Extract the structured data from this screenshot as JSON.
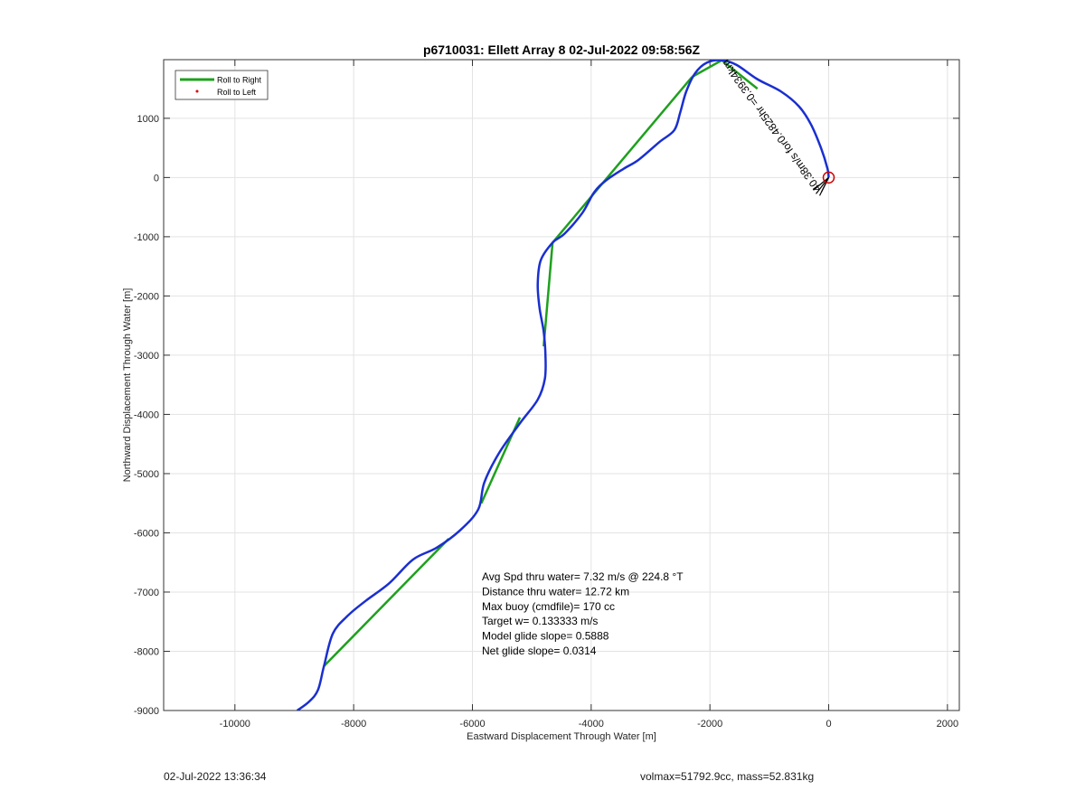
{
  "chart_data": {
    "type": "line",
    "title": "p6710031: Ellett Array 8 02-Jul-2022 09:58:56Z",
    "xlabel": "Eastward Displacement Through Water [m]",
    "ylabel": "Northward Displacement Through Water [m]",
    "xlim": [
      -11200,
      2200
    ],
    "ylim": [
      -9000,
      1990
    ],
    "xticks": [
      -10000,
      -8000,
      -6000,
      -4000,
      -2000,
      0,
      2000
    ],
    "yticks": [
      -9000,
      -8000,
      -7000,
      -6000,
      -5000,
      -4000,
      -3000,
      -2000,
      -1000,
      0,
      1000
    ],
    "grid": true,
    "legend": {
      "position": "top-left",
      "entries": [
        {
          "label": "Roll to Right",
          "color": "#1ea01e",
          "style": "line"
        },
        {
          "label": "Roll to Left",
          "color": "#e00000",
          "style": "dot"
        }
      ]
    },
    "series": [
      {
        "name": "Roll to Right",
        "color": "#1ea01e",
        "segments": [
          [
            [
              -8500,
              -8250
            ],
            [
              -6400,
              -6100
            ]
          ],
          [
            [
              -5850,
              -5500
            ],
            [
              -5200,
              -4050
            ]
          ],
          [
            [
              -4800,
              -2850
            ],
            [
              -4650,
              -1100
            ]
          ],
          [
            [
              -4650,
              -1100
            ],
            [
              -2300,
              1700
            ]
          ],
          [
            [
              -2300,
              1700
            ],
            [
              -1800,
              1980
            ]
          ],
          [
            [
              -1800,
              1980
            ],
            [
              -1200,
              1500
            ]
          ]
        ]
      },
      {
        "color": "#1a2fd0",
        "points": [
          [
            -8950,
            -9000
          ],
          [
            -8750,
            -8850
          ],
          [
            -8600,
            -8650
          ],
          [
            -8500,
            -8250
          ],
          [
            -8350,
            -7700
          ],
          [
            -8100,
            -7400
          ],
          [
            -7800,
            -7150
          ],
          [
            -7400,
            -6850
          ],
          [
            -7000,
            -6450
          ],
          [
            -6600,
            -6250
          ],
          [
            -6200,
            -5950
          ],
          [
            -5900,
            -5600
          ],
          [
            -5800,
            -5150
          ],
          [
            -5550,
            -4650
          ],
          [
            -5200,
            -4150
          ],
          [
            -4900,
            -3750
          ],
          [
            -4780,
            -3400
          ],
          [
            -4770,
            -3000
          ],
          [
            -4800,
            -2600
          ],
          [
            -4870,
            -2200
          ],
          [
            -4900,
            -1800
          ],
          [
            -4850,
            -1400
          ],
          [
            -4650,
            -1100
          ],
          [
            -4450,
            -950
          ],
          [
            -4150,
            -600
          ],
          [
            -3950,
            -250
          ],
          [
            -3750,
            -50
          ],
          [
            -3450,
            150
          ],
          [
            -3200,
            300
          ],
          [
            -2850,
            600
          ],
          [
            -2600,
            800
          ],
          [
            -2500,
            1100
          ],
          [
            -2400,
            1450
          ],
          [
            -2250,
            1760
          ],
          [
            -2050,
            1940
          ],
          [
            -1800,
            1980
          ],
          [
            -1550,
            1900
          ],
          [
            -1200,
            1660
          ],
          [
            -800,
            1450
          ],
          [
            -500,
            1200
          ],
          [
            -300,
            900
          ],
          [
            -130,
            500
          ],
          [
            -20,
            150
          ],
          [
            0,
            0
          ]
        ]
      }
    ],
    "marker": {
      "x": 0,
      "y": 0,
      "color": "#cc0000",
      "shape": "circle"
    },
    "rotated_annotation": "40.38m/s for0.4825hr =0.3934km",
    "stats": [
      "Avg Spd thru water=  7.32 m/s @ 224.8 °T",
      "Distance thru water= 12.72 km",
      "Max buoy (cmdfile)= 170 cc",
      "Target w= 0.133333 m/s",
      "Model glide slope= 0.5888",
      "Net glide slope= 0.0314"
    ]
  },
  "footer": {
    "left": "02-Jul-2022 13:36:34",
    "right": "volmax=51792.9cc, mass=52.831kg"
  }
}
